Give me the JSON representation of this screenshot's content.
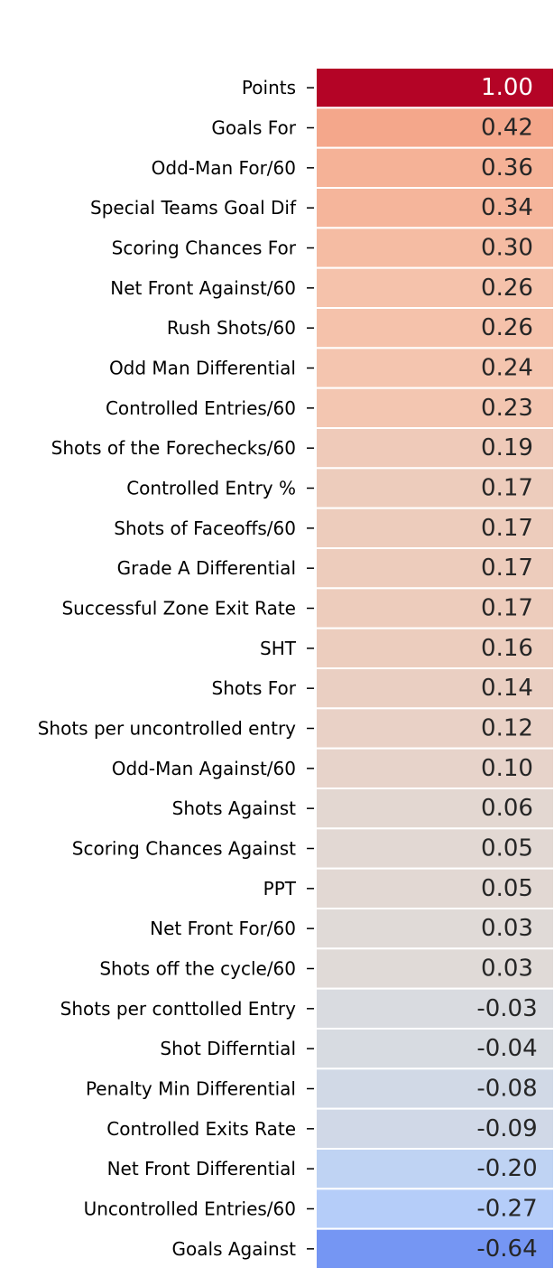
{
  "chart_data": {
    "type": "heatmap",
    "colormap": "coolwarm",
    "vmin": -1,
    "vmax": 1,
    "rows": [
      {
        "label": "Points",
        "value": 1.0,
        "text": "1.00"
      },
      {
        "label": "Goals For",
        "value": 0.42,
        "text": "0.42"
      },
      {
        "label": "Odd-Man For/60",
        "value": 0.36,
        "text": "0.36"
      },
      {
        "label": "Special Teams Goal Dif",
        "value": 0.34,
        "text": "0.34"
      },
      {
        "label": "Scoring Chances For",
        "value": 0.3,
        "text": "0.30"
      },
      {
        "label": "Net Front Against/60",
        "value": 0.26,
        "text": "0.26"
      },
      {
        "label": "Rush Shots/60",
        "value": 0.26,
        "text": "0.26"
      },
      {
        "label": "Odd Man Differential",
        "value": 0.24,
        "text": "0.24"
      },
      {
        "label": "Controlled Entries/60",
        "value": 0.23,
        "text": "0.23"
      },
      {
        "label": "Shots of the Forechecks/60",
        "value": 0.19,
        "text": "0.19"
      },
      {
        "label": "Controlled Entry %",
        "value": 0.17,
        "text": "0.17"
      },
      {
        "label": "Shots of Faceoffs/60",
        "value": 0.17,
        "text": "0.17"
      },
      {
        "label": "Grade A Differential",
        "value": 0.17,
        "text": "0.17"
      },
      {
        "label": "Successful Zone Exit Rate",
        "value": 0.17,
        "text": "0.17"
      },
      {
        "label": "SHT",
        "value": 0.16,
        "text": "0.16"
      },
      {
        "label": "Shots For",
        "value": 0.14,
        "text": "0.14"
      },
      {
        "label": "Shots per uncontrolled entry",
        "value": 0.12,
        "text": "0.12"
      },
      {
        "label": "Odd-Man Against/60",
        "value": 0.1,
        "text": "0.10"
      },
      {
        "label": "Shots Against",
        "value": 0.06,
        "text": "0.06"
      },
      {
        "label": "Scoring Chances Against",
        "value": 0.05,
        "text": "0.05"
      },
      {
        "label": "PPT",
        "value": 0.05,
        "text": "0.05"
      },
      {
        "label": "Net Front For/60",
        "value": 0.03,
        "text": "0.03"
      },
      {
        "label": "Shots off the cycle/60",
        "value": 0.03,
        "text": "0.03"
      },
      {
        "label": "Shots per conttolled Entry",
        "value": -0.03,
        "text": "-0.03"
      },
      {
        "label": "Shot Differntial",
        "value": -0.04,
        "text": "-0.04"
      },
      {
        "label": "Penalty Min Differential",
        "value": -0.08,
        "text": "-0.08"
      },
      {
        "label": "Controlled Exits Rate",
        "value": -0.09,
        "text": "-0.09"
      },
      {
        "label": "Net Front Differential",
        "value": -0.2,
        "text": "-0.20"
      },
      {
        "label": "Uncontrolled Entries/60",
        "value": -0.27,
        "text": "-0.27"
      },
      {
        "label": "Goals Against",
        "value": -0.64,
        "text": "-0.64"
      }
    ]
  }
}
